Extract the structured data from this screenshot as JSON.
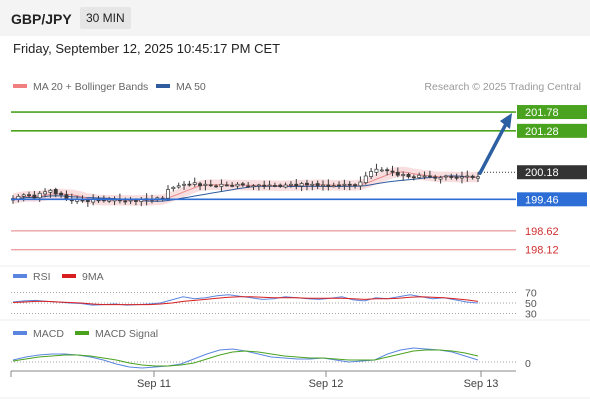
{
  "header": {
    "symbol": "GBP/JPY",
    "timeframe": "30 MIN",
    "datetime": "Friday, September 12, 2025 10:45:17 PM CET"
  },
  "legend_main": [
    {
      "label": "MA 20 + Bollinger Bands",
      "color": "#f08080"
    },
    {
      "label": "MA 50",
      "color": "#2f5c9e"
    }
  ],
  "watermark": "Research © 2025 Trading Central",
  "colors": {
    "candle": "#3a3a3a",
    "green_level": "#4aa31f",
    "blue_level": "#2d6ed6",
    "red_level": "#e06a6a",
    "band_fill": "#f7d3d6",
    "ma50": "#2f5c9e",
    "ma20": "#e88d8d",
    "arrow": "#2d5fa3",
    "current_tag": "#333333",
    "rsi": "#5b86e0",
    "rsi_ma": "#d81e1e",
    "macd": "#5b86e0",
    "macd_signal": "#4aa31f"
  },
  "legend_rsi": [
    {
      "label": "RSI",
      "color": "#5b86e0"
    },
    {
      "label": "9MA",
      "color": "#d81e1e"
    }
  ],
  "legend_macd": [
    {
      "label": "MACD",
      "color": "#5b86e0"
    },
    {
      "label": "MACD Signal",
      "color": "#4aa31f"
    }
  ],
  "chart_data": {
    "type": "candlestick",
    "price_range": [
      197.9,
      202.1
    ],
    "levels": [
      {
        "value": 201.78,
        "label": "201.78",
        "style": "resistance",
        "color": "#4aa31f"
      },
      {
        "value": 201.28,
        "label": "201.28",
        "style": "resistance",
        "color": "#4aa31f"
      },
      {
        "value": 200.18,
        "label": "200.18",
        "style": "current",
        "color": "#333333"
      },
      {
        "value": 199.46,
        "label": "199.46",
        "style": "pivot",
        "color": "#2d6ed6"
      },
      {
        "value": 198.62,
        "label": "198.62",
        "style": "support",
        "color": "#e06a6a"
      },
      {
        "value": 198.12,
        "label": "198.12",
        "style": "support",
        "color": "#e06a6a"
      }
    ],
    "close_path": [
      199.48,
      199.54,
      199.58,
      199.56,
      199.5,
      199.62,
      199.66,
      199.7,
      199.6,
      199.58,
      199.48,
      199.42,
      199.46,
      199.44,
      199.4,
      199.46,
      199.44,
      199.42,
      199.44,
      199.46,
      199.42,
      199.4,
      199.44,
      199.42,
      199.46,
      199.44,
      199.46,
      199.5,
      199.48,
      199.72,
      199.78,
      199.82,
      199.86,
      199.84,
      199.9,
      199.82,
      199.86,
      199.84,
      199.8,
      199.86,
      199.84,
      199.82,
      199.86,
      199.84,
      199.8,
      199.82,
      199.84,
      199.8,
      199.84,
      199.82,
      199.8,
      199.84,
      199.86,
      199.82,
      199.88,
      199.84,
      199.86,
      199.82,
      199.84,
      199.8,
      199.82,
      199.84,
      199.86,
      199.84,
      199.82,
      199.92,
      200.08,
      200.2,
      200.26,
      200.24,
      200.22,
      200.18,
      200.1,
      200.12,
      200.06,
      200.04,
      200.1,
      200.08,
      200.06,
      200.02,
      200.04,
      200.08,
      200.04,
      200.02,
      200.06,
      200.08,
      200.04,
      200.06
    ],
    "forecast_arrow": {
      "from": 200.18,
      "to": 201.78
    },
    "x_ticks": [
      "Sep 11",
      "Sep 12",
      "Sep 13"
    ],
    "rsi": {
      "levels": [
        70,
        50,
        30
      ],
      "rsi_values": [
        52,
        54,
        55,
        53,
        52,
        50,
        49,
        46,
        47,
        48,
        46,
        47,
        48,
        50,
        56,
        62,
        58,
        60,
        64,
        66,
        63,
        60,
        57,
        58,
        62,
        60,
        58,
        57,
        59,
        62,
        56,
        54,
        60,
        58,
        62,
        66,
        62,
        58,
        60,
        56,
        52,
        50
      ],
      "ma_values": [
        51,
        52,
        53,
        53,
        52,
        51,
        50,
        48,
        47,
        47,
        47,
        47,
        47,
        48,
        50,
        53,
        55,
        57,
        59,
        61,
        62,
        62,
        61,
        60,
        60,
        60,
        59,
        59,
        59,
        59,
        58,
        57,
        58,
        58,
        59,
        61,
        62,
        61,
        60,
        58,
        56,
        53
      ]
    },
    "macd": {
      "zero_label": "0",
      "macd_values": [
        0.02,
        0.05,
        0.07,
        0.08,
        0.08,
        0.07,
        0.05,
        0.02,
        -0.02,
        -0.05,
        -0.06,
        -0.05,
        -0.04,
        -0.02,
        0.03,
        0.08,
        0.12,
        0.13,
        0.11,
        0.08,
        0.05,
        0.04,
        0.03,
        0.03,
        0.04,
        0.02,
        0.0,
        0.01,
        0.02,
        0.08,
        0.12,
        0.14,
        0.13,
        0.12,
        0.1,
        0.06,
        0.02
      ],
      "signal_values": [
        0.01,
        0.03,
        0.05,
        0.06,
        0.07,
        0.07,
        0.06,
        0.04,
        0.02,
        -0.01,
        -0.03,
        -0.04,
        -0.04,
        -0.03,
        -0.01,
        0.03,
        0.07,
        0.1,
        0.11,
        0.1,
        0.08,
        0.06,
        0.05,
        0.04,
        0.04,
        0.03,
        0.02,
        0.02,
        0.02,
        0.05,
        0.08,
        0.11,
        0.12,
        0.12,
        0.11,
        0.09,
        0.06
      ]
    }
  }
}
